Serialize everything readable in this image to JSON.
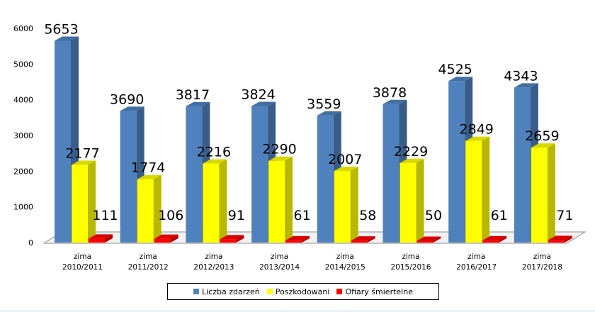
{
  "chart_data": {
    "type": "bar",
    "categories": [
      [
        "zima",
        "2010/2011"
      ],
      [
        "zima",
        "2011/2012"
      ],
      [
        "zima",
        "2012/2013"
      ],
      [
        "zima",
        "2013/2014"
      ],
      [
        "zima",
        "2014/2015"
      ],
      [
        "zima",
        "2015/2016"
      ],
      [
        "zima",
        "2016/2017"
      ],
      [
        "zima",
        "2017/2018"
      ]
    ],
    "series": [
      {
        "name": "Liczba zdarzeń",
        "values": [
          5653,
          3690,
          3817,
          3824,
          3559,
          3878,
          4525,
          4343
        ],
        "color": "#4f81bd"
      },
      {
        "name": "Poszkodowani",
        "values": [
          2177,
          1774,
          2216,
          2290,
          2007,
          2229,
          2849,
          2659
        ],
        "color": "#ffff00"
      },
      {
        "name": "Ofiary śmiertelne",
        "values": [
          111,
          106,
          91,
          61,
          58,
          50,
          61,
          71
        ],
        "color": "#ff0000"
      }
    ],
    "yticks": [
      0,
      1000,
      2000,
      3000,
      4000,
      5000,
      6000
    ],
    "ylim": [
      0,
      6000
    ],
    "legend_position": "bottom",
    "grid": false,
    "title": "",
    "xlabel": "",
    "ylabel": ""
  }
}
